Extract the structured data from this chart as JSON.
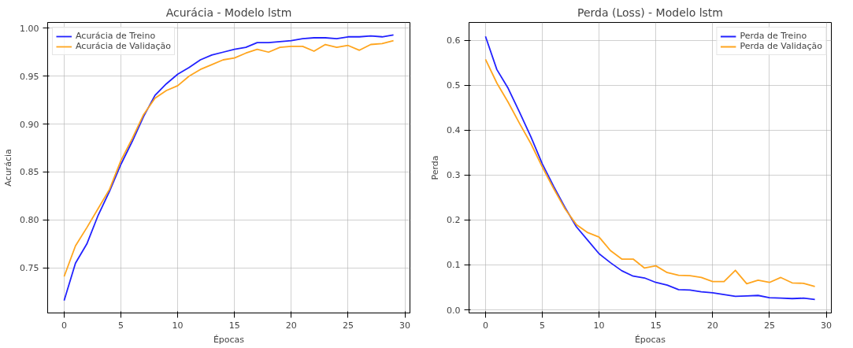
{
  "chart_data": [
    {
      "type": "line",
      "title": "Acurácia - Modelo lstm",
      "xlabel": "Épocas",
      "ylabel": "Acurácia",
      "x": [
        0,
        1,
        2,
        3,
        4,
        5,
        6,
        7,
        8,
        9,
        10,
        11,
        12,
        13,
        14,
        15,
        16,
        17,
        18,
        19,
        20,
        21,
        22,
        23,
        24,
        25,
        26,
        27,
        28,
        29
      ],
      "series": [
        {
          "name": "Acurácia de Treino",
          "color": "#2222ff",
          "values": [
            0.716,
            0.755,
            0.775,
            0.805,
            0.83,
            0.858,
            0.882,
            0.908,
            0.93,
            0.942,
            0.952,
            0.959,
            0.967,
            0.972,
            0.975,
            0.978,
            0.98,
            0.985,
            0.985,
            0.986,
            0.987,
            0.989,
            0.99,
            0.99,
            0.989,
            0.991,
            0.991,
            0.992,
            0.991,
            0.993
          ]
        },
        {
          "name": "Acurácia de Validação",
          "color": "#ffa51e",
          "values": [
            0.741,
            0.773,
            0.792,
            0.812,
            0.832,
            0.862,
            0.885,
            0.91,
            0.927,
            0.935,
            0.94,
            0.95,
            0.957,
            0.962,
            0.967,
            0.969,
            0.974,
            0.978,
            0.975,
            0.98,
            0.981,
            0.981,
            0.976,
            0.983,
            0.98,
            0.982,
            0.977,
            0.983,
            0.984,
            0.987
          ]
        }
      ],
      "xlim": [
        -1.45,
        30.45
      ],
      "xticks": [
        0,
        5,
        10,
        15,
        20,
        25,
        30
      ],
      "ylim": [
        0.703,
        1.006
      ],
      "yticks": [
        0.75,
        {
          "value": 0.8,
          "label": "0.80"
        },
        0.85,
        {
          "value": 0.9,
          "label": "0.90"
        },
        0.95,
        {
          "value": 1,
          "label": "1.00"
        }
      ],
      "grid": true,
      "legend": "top left",
      "line_style": "solid",
      "marker": "none"
    },
    {
      "type": "line",
      "title": "Perda (Loss) - Modelo lstm",
      "xlabel": "Épocas",
      "ylabel": "Perda",
      "x": [
        0,
        1,
        2,
        3,
        4,
        5,
        6,
        7,
        8,
        9,
        10,
        11,
        12,
        13,
        14,
        15,
        16,
        17,
        18,
        19,
        20,
        21,
        22,
        23,
        24,
        25,
        26,
        27,
        28,
        29
      ],
      "series": [
        {
          "name": "Perda de Treino",
          "color": "#2222ff",
          "values": [
            0.609,
            0.535,
            0.493,
            0.44,
            0.385,
            0.325,
            0.275,
            0.228,
            0.185,
            0.155,
            0.125,
            0.105,
            0.087,
            0.075,
            0.071,
            0.061,
            0.055,
            0.045,
            0.044,
            0.04,
            0.038,
            0.034,
            0.03,
            0.031,
            0.032,
            0.027,
            0.026,
            0.025,
            0.026,
            0.023
          ]
        },
        {
          "name": "Perda de Validação",
          "color": "#ffa51e",
          "values": [
            0.558,
            0.505,
            0.462,
            0.415,
            0.37,
            0.318,
            0.27,
            0.225,
            0.19,
            0.172,
            0.162,
            0.132,
            0.113,
            0.113,
            0.093,
            0.098,
            0.083,
            0.077,
            0.076,
            0.072,
            0.063,
            0.063,
            0.088,
            0.058,
            0.066,
            0.061,
            0.072,
            0.06,
            0.059,
            0.052
          ]
        }
      ],
      "xlim": [
        -1.45,
        30.45
      ],
      "xticks": [
        0,
        5,
        10,
        15,
        20,
        25,
        30
      ],
      "ylim": [
        -0.007,
        0.64
      ],
      "yticks": [
        {
          "value": 0,
          "label": "0.0"
        },
        0.1,
        0.2,
        0.3,
        0.4,
        0.5,
        0.6
      ],
      "grid": true,
      "legend": "top right",
      "line_style": "solid",
      "marker": "none"
    }
  ]
}
